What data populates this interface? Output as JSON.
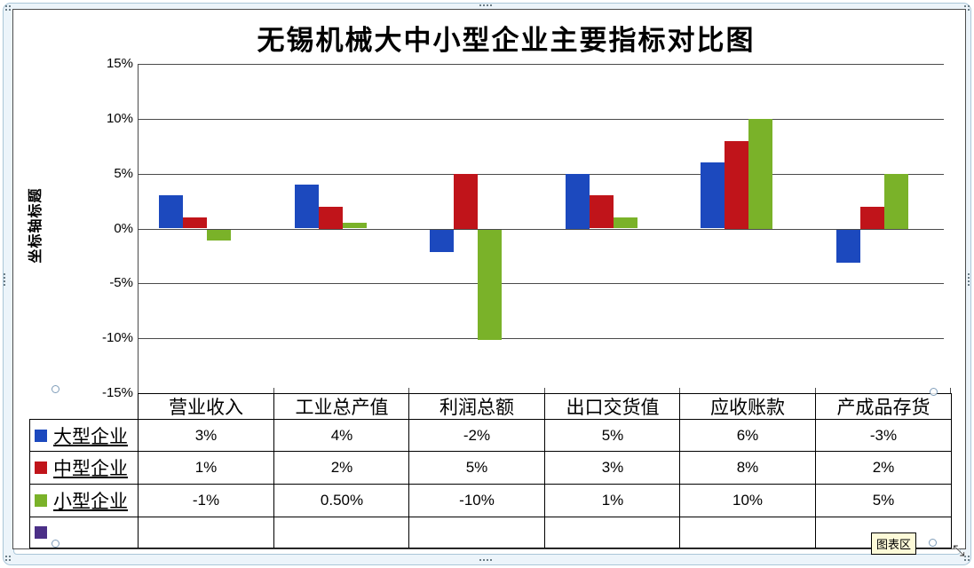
{
  "chart_data": {
    "type": "bar",
    "title": "无锡机械大中小型企业主要指标对比图",
    "ylabel": "坐标轴标题",
    "xlabel": "",
    "categories": [
      "营业收入",
      "工业总产值",
      "利润总额",
      "出口交货值",
      "应收账款",
      "产成品存货"
    ],
    "series": [
      {
        "name": "大型企业",
        "color": "#1C49BE",
        "values": [
          3,
          4,
          -2,
          5,
          6,
          -3
        ],
        "display": [
          "3%",
          "4%",
          "-2%",
          "5%",
          "6%",
          "-3%"
        ]
      },
      {
        "name": "中型企业",
        "color": "#C0141A",
        "values": [
          1,
          2,
          5,
          3,
          8,
          2
        ],
        "display": [
          "1%",
          "2%",
          "5%",
          "3%",
          "8%",
          "2%"
        ]
      },
      {
        "name": "小型企业",
        "color": "#7AB229",
        "values": [
          -1,
          0.5,
          -10,
          1,
          10,
          5
        ],
        "display": [
          "-1%",
          "0.50%",
          "-10%",
          "1%",
          "10%",
          "5%"
        ]
      }
    ],
    "extra_legend_swatch": {
      "color": "#4B2F87",
      "label": ""
    },
    "ylim": [
      -15,
      15
    ],
    "yticks": [
      "15%",
      "10%",
      "5%",
      "0%",
      "-5%",
      "-10%",
      "-15%"
    ],
    "grid": true,
    "legend_position": "table-left-column",
    "data_table_shown": true
  },
  "tooltip": {
    "label": "图表区"
  },
  "ui_colors": {
    "selection_frame_fill": "#ECF4FA",
    "selection_frame_border": "#AAC6D8",
    "grid_line": "#4A4A4A",
    "table_border": "#000000",
    "tooltip_fill": "#FDFAD8"
  }
}
